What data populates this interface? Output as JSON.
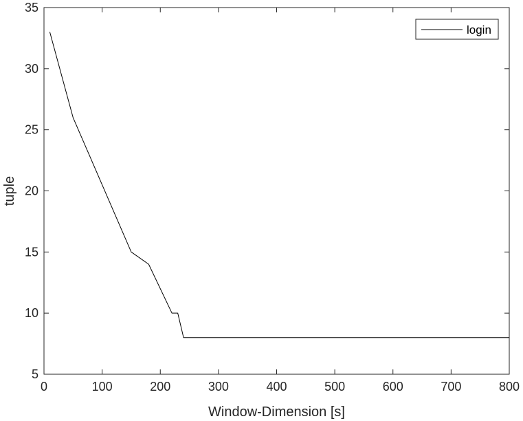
{
  "chart_data": {
    "type": "line",
    "title": "",
    "xlabel": "Window-Dimension [s]",
    "ylabel": "tuple",
    "xlim": [
      0,
      800
    ],
    "ylim": [
      5,
      35
    ],
    "xticks": [
      0,
      100,
      200,
      300,
      400,
      500,
      600,
      700,
      800
    ],
    "yticks": [
      5,
      10,
      15,
      20,
      25,
      30,
      35
    ],
    "xtick_labels": [
      "0",
      "100",
      "200",
      "300",
      "400",
      "500",
      "600",
      "700",
      "800"
    ],
    "ytick_labels": [
      "5",
      "10",
      "15",
      "20",
      "25",
      "30",
      "35"
    ],
    "grid": false,
    "legend_position": "top-right",
    "series": [
      {
        "name": "login",
        "color": "#000000",
        "x": [
          10,
          50,
          150,
          180,
          220,
          230,
          240,
          800
        ],
        "y": [
          33,
          26,
          15,
          14,
          10,
          10,
          8,
          8
        ]
      }
    ]
  }
}
